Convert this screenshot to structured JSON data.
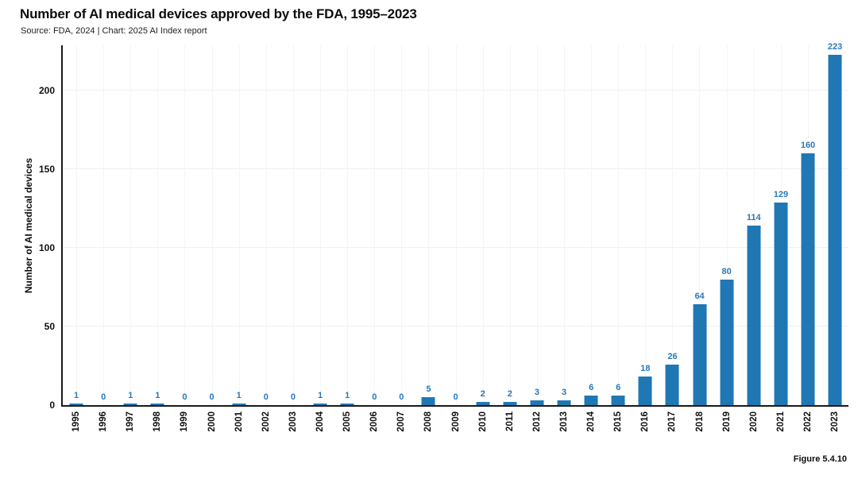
{
  "chart_data": {
    "type": "bar",
    "title": "Number of AI medical devices approved by the FDA, 1995–2023",
    "source_note": "Source: FDA, 2024 | Chart: 2025 AI Index report",
    "ylabel": "Number of AI medical devices",
    "xlabel": "",
    "categories": [
      "1995",
      "1996",
      "1997",
      "1998",
      "1999",
      "2000",
      "2001",
      "2002",
      "2003",
      "2004",
      "2005",
      "2006",
      "2007",
      "2008",
      "2009",
      "2010",
      "2011",
      "2012",
      "2013",
      "2014",
      "2015",
      "2016",
      "2017",
      "2018",
      "2019",
      "2020",
      "2021",
      "2022",
      "2023"
    ],
    "values": [
      1,
      0,
      1,
      1,
      0,
      0,
      1,
      0,
      0,
      1,
      1,
      0,
      0,
      5,
      0,
      2,
      2,
      3,
      3,
      6,
      6,
      18,
      26,
      64,
      80,
      114,
      129,
      160,
      223
    ],
    "yticks": [
      0,
      50,
      100,
      150,
      200
    ],
    "ylim": [
      0,
      230
    ],
    "grid": true,
    "legend": "none",
    "bar_color": "#1F77B4",
    "value_label_color": "#2979BD",
    "axis_color": "#1a1a1a",
    "figure_label": "Figure 5.4.10"
  }
}
